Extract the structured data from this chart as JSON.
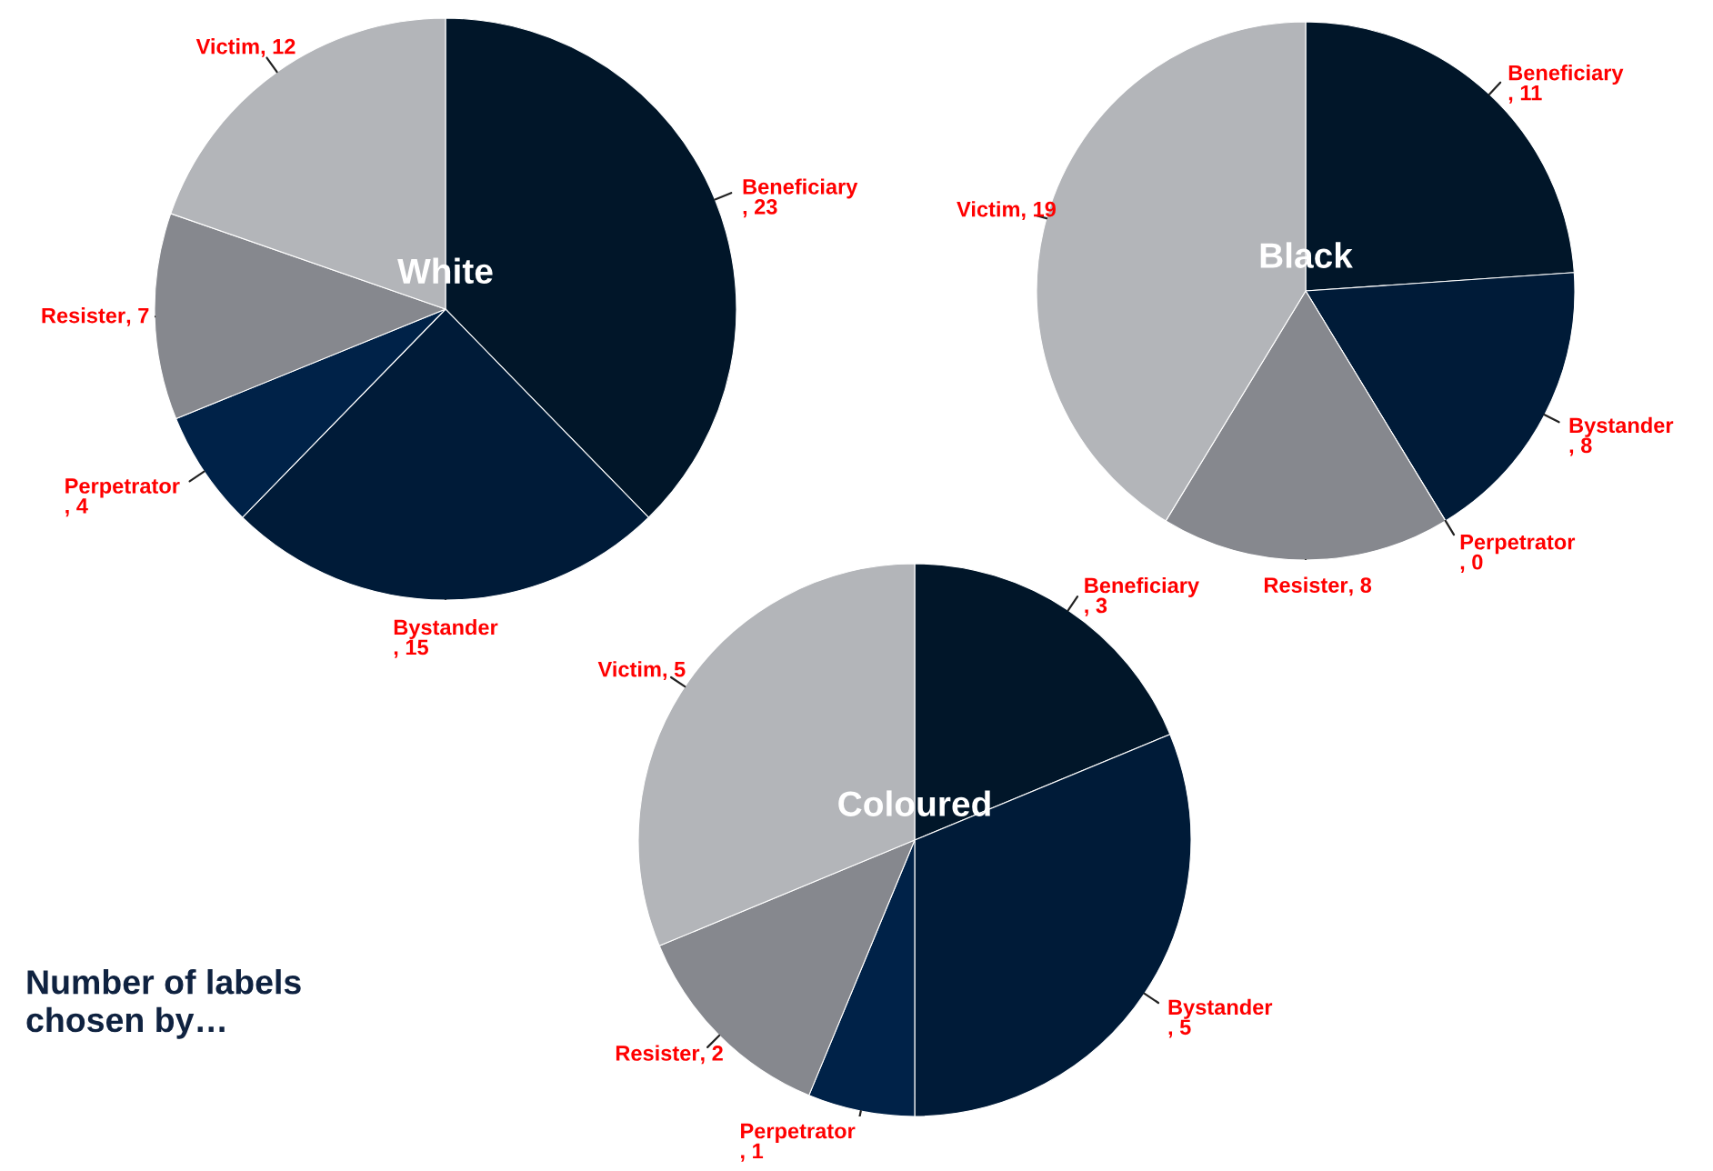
{
  "chart_data": [
    {
      "type": "pie",
      "title": "White",
      "categories": [
        "Beneficiary",
        "Bystander",
        "Perpetrator",
        "Resister",
        "Victim"
      ],
      "values": [
        23,
        15,
        4,
        7,
        12
      ],
      "colors": [
        "#011629",
        "#001b38",
        "#002248",
        "#86888e",
        "#b3b5b9"
      ],
      "value_labels": [
        ", 23",
        ", 15",
        ", 4",
        ", 7",
        ", 12"
      ]
    },
    {
      "type": "pie",
      "title": "Black",
      "categories": [
        "Beneficiary",
        "Bystander",
        "Perpetrator",
        "Resister",
        "Victim"
      ],
      "values": [
        11,
        8,
        0,
        8,
        19
      ],
      "colors": [
        "#011629",
        "#001b38",
        "#002248",
        "#86888e",
        "#b3b5b9"
      ],
      "value_labels": [
        ", 11",
        ", 8",
        ", 0",
        ", 8",
        ", 19"
      ]
    },
    {
      "type": "pie",
      "title": "Coloured",
      "categories": [
        "Beneficiary",
        "Bystander",
        "Perpetrator",
        "Resister",
        "Victim"
      ],
      "values": [
        3,
        5,
        1,
        2,
        5
      ],
      "colors": [
        "#011629",
        "#001b38",
        "#002248",
        "#86888e",
        "#b3b5b9"
      ],
      "value_labels": [
        ", 3",
        ", 5",
        ", 1",
        ", 2",
        ", 5"
      ],
      "annotations": [
        "Number of labels\nchosen by…"
      ]
    }
  ]
}
